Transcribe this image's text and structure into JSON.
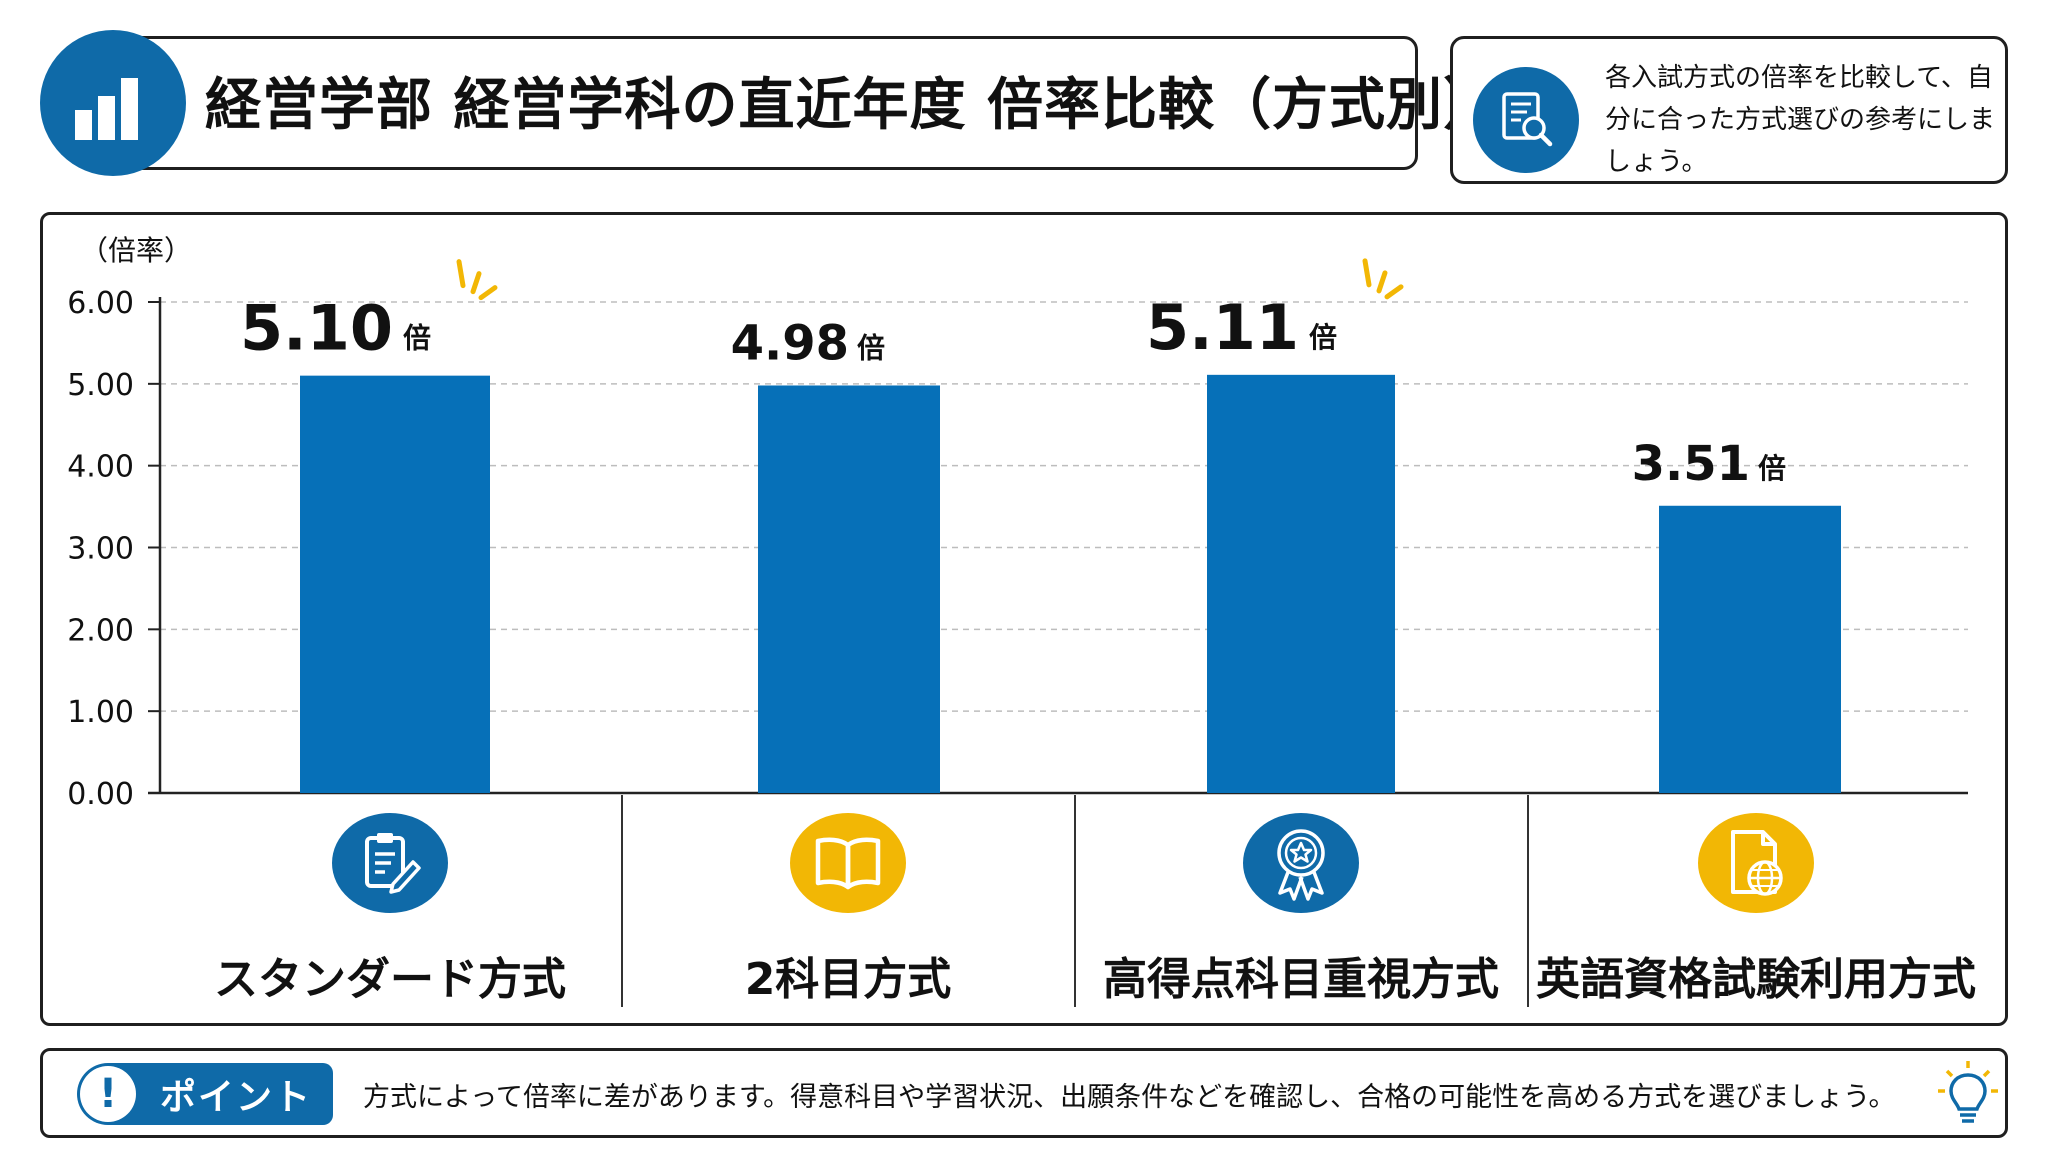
{
  "header": {
    "title": "経営学部 経営学科の直近年度 倍率比較（方式別）",
    "icon": "bar-chart-icon"
  },
  "note": {
    "text": "各入試方式の倍率を比較して、自分に合った方式選びの参考にしましょう。",
    "icon": "document-search-icon"
  },
  "colors": {
    "bar": "#0670b8",
    "accent_blue": "#0f6aa8",
    "accent_yellow": "#f2b705",
    "grid": "#bdbdbd"
  },
  "chart_data": {
    "type": "bar",
    "ylabel": "（倍率）",
    "ylim": [
      0,
      6
    ],
    "yticks": [
      "0.00",
      "1.00",
      "2.00",
      "3.00",
      "4.00",
      "5.00",
      "6.00"
    ],
    "categories": [
      "スタンダード方式",
      "2科目方式",
      "高得点科目重視方式",
      "英語資格試験利用方式"
    ],
    "values": [
      5.1,
      4.98,
      5.11,
      3.51
    ],
    "value_labels": [
      "5.10",
      "4.98",
      "5.11",
      "3.51"
    ],
    "unit": "倍",
    "highlighted": [
      true,
      false,
      true,
      false
    ],
    "grid": true
  },
  "categories_ui": [
    {
      "label": "スタンダード方式",
      "icon": "clipboard-pencil-icon",
      "color": "#0f6aa8"
    },
    {
      "label": "2科目方式",
      "icon": "open-book-icon",
      "color": "#f2b705"
    },
    {
      "label": "高得点科目重視方式",
      "icon": "award-ribbon-icon",
      "color": "#0f6aa8"
    },
    {
      "label": "英語資格試験利用方式",
      "icon": "globe-document-icon",
      "color": "#f2b705"
    }
  ],
  "point": {
    "label": "ポイント",
    "text": "方式によって倍率に差があります。得意科目や学習状況、出願条件などを確認し、合格の可能性を高める方式を選びましょう。",
    "icon": "lightbulb-icon"
  }
}
